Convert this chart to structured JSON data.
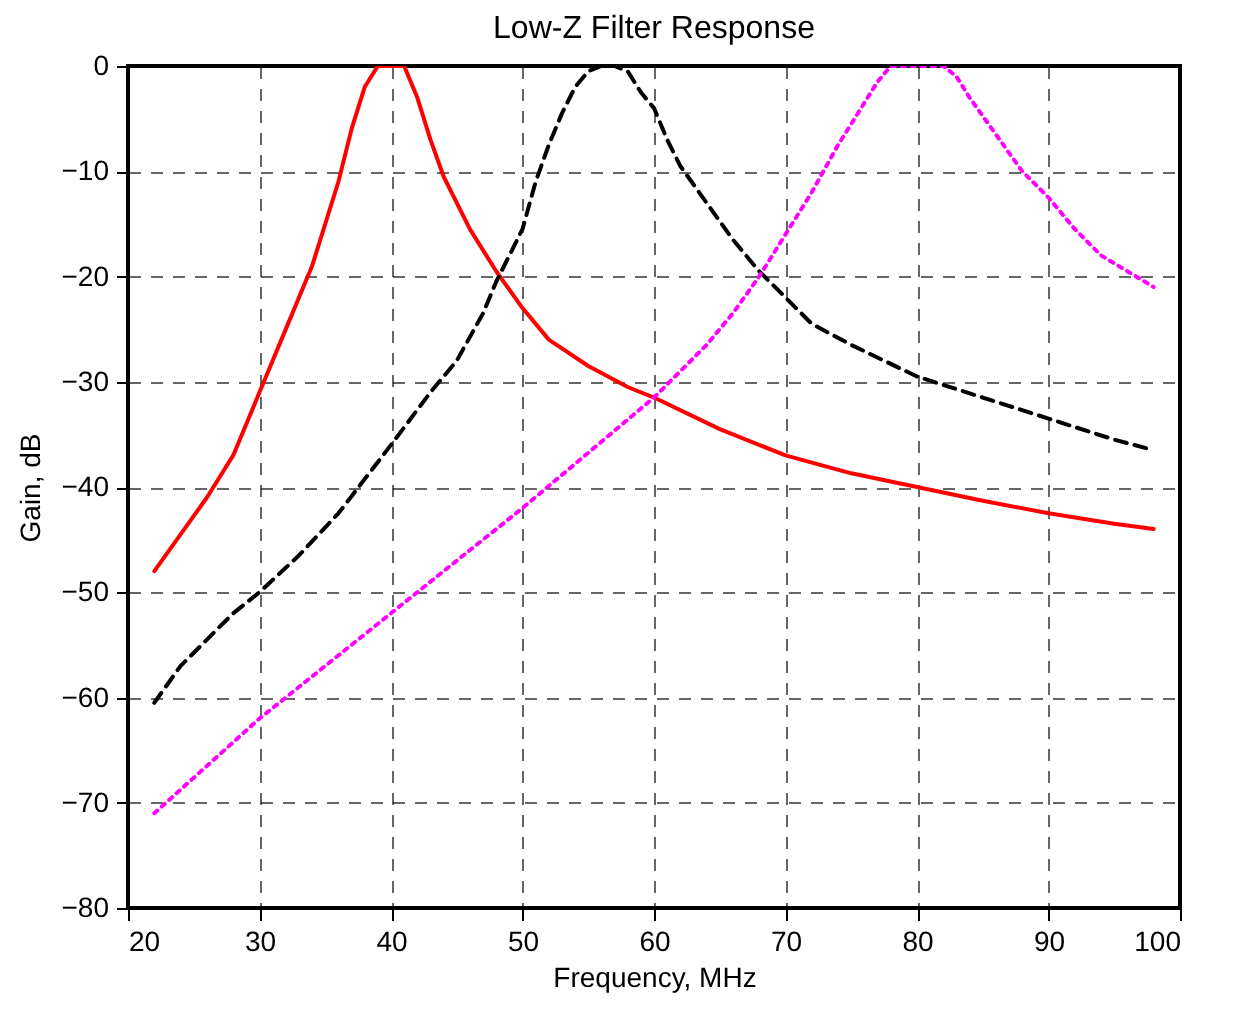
{
  "chart_data": {
    "type": "line",
    "title": "Low-Z Filter Response",
    "xlabel": "Frequency, MHz",
    "ylabel": "Gain, dB",
    "xlim": [
      20,
      100
    ],
    "xticks": [
      20,
      30,
      40,
      50,
      60,
      70,
      80,
      90,
      100
    ],
    "ylim": [
      -80,
      0
    ],
    "yticks": [
      -80,
      -70,
      -60,
      -50,
      -40,
      -30,
      -20,
      -10,
      0
    ],
    "grid": true,
    "series": [
      {
        "color": "#ff0000",
        "line_style": "solid",
        "x": [
          22,
          24,
          26,
          28,
          30,
          32,
          34,
          36,
          37,
          38,
          39,
          40,
          41,
          42,
          43,
          44,
          46,
          48,
          50,
          52,
          55,
          58,
          60,
          65,
          70,
          75,
          80,
          85,
          90,
          95,
          98
        ],
        "values": [
          -48,
          -44.5,
          -41,
          -37,
          -31,
          -25,
          -19,
          -11,
          -6,
          -2,
          0,
          0,
          0,
          -3,
          -7,
          -10.5,
          -15.5,
          -19.5,
          -23,
          -26,
          -28.5,
          -30.5,
          -31.5,
          -34.5,
          -37,
          -38.7,
          -40,
          -41.3,
          -42.5,
          -43.5,
          -44
        ]
      },
      {
        "color": "#000000",
        "line_style": "dashed",
        "x": [
          22,
          24,
          26,
          28,
          30,
          33,
          36,
          40,
          43,
          45,
          47,
          48,
          49,
          50,
          51,
          52,
          53,
          54,
          55,
          56,
          57,
          58,
          59,
          60,
          61,
          62,
          64,
          66,
          68,
          70,
          72,
          75,
          80,
          85,
          90,
          95,
          98
        ],
        "values": [
          -60.5,
          -57,
          -54.5,
          -52,
          -50,
          -46.5,
          -42.5,
          -36,
          -31,
          -28,
          -23.5,
          -20.5,
          -18,
          -15.5,
          -11,
          -7.5,
          -4.5,
          -2,
          -0.5,
          0,
          0,
          -0.5,
          -2.5,
          -4,
          -7,
          -9.5,
          -13,
          -16.5,
          -19.5,
          -22,
          -24.5,
          -26.5,
          -29.5,
          -31.5,
          -33.5,
          -35.5,
          -36.5
        ]
      },
      {
        "color": "#ff00ff",
        "line_style": "dotted",
        "x": [
          22,
          30,
          40,
          50,
          60,
          62,
          64,
          66,
          68,
          70,
          72,
          74,
          76,
          77,
          78,
          79,
          80,
          81,
          82,
          83,
          84,
          86,
          88,
          90,
          92,
          94,
          96,
          98
        ],
        "values": [
          -71,
          -62,
          -52,
          -42,
          -31.5,
          -29,
          -26.5,
          -23.5,
          -20,
          -16,
          -12,
          -7.5,
          -3.5,
          -1.5,
          0,
          0,
          0,
          0,
          0,
          -1,
          -3,
          -6.5,
          -10,
          -12.5,
          -15.5,
          -18,
          -19.5,
          -21
        ]
      }
    ]
  }
}
